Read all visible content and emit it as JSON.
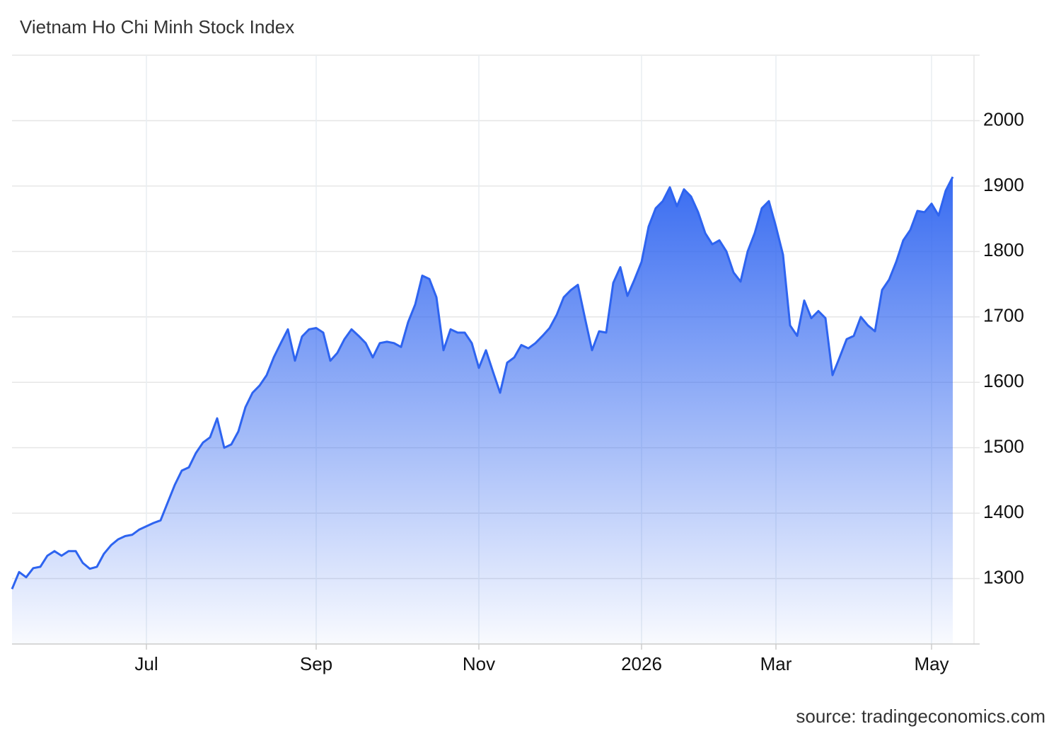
{
  "chart_data": {
    "type": "area",
    "title": "Vietnam Ho Chi Minh Stock Index",
    "source": "source: tradingeconomics.com",
    "color": "#2e64f0",
    "grid": true,
    "ylim": [
      1200,
      2100
    ],
    "yticks": [
      1300,
      1400,
      1500,
      1600,
      1700,
      1800,
      1900,
      2000
    ],
    "categories": [
      null,
      null,
      null,
      null,
      null,
      null,
      null,
      null,
      null,
      null,
      null,
      null,
      null,
      null,
      null,
      null,
      null,
      null,
      null,
      "Jul",
      null,
      null,
      null,
      null,
      null,
      null,
      null,
      null,
      null,
      null,
      null,
      null,
      null,
      null,
      null,
      null,
      null,
      null,
      null,
      null,
      null,
      null,
      null,
      "Sep",
      null,
      null,
      null,
      null,
      null,
      null,
      null,
      null,
      null,
      null,
      null,
      null,
      null,
      null,
      null,
      null,
      null,
      null,
      null,
      null,
      null,
      null,
      "Nov",
      null,
      null,
      null,
      null,
      null,
      null,
      null,
      null,
      null,
      null,
      null,
      null,
      null,
      null,
      null,
      null,
      null,
      null,
      null,
      null,
      null,
      null,
      "2026",
      null,
      null,
      null,
      null,
      null,
      null,
      null,
      null,
      null,
      null,
      null,
      null,
      null,
      null,
      null,
      null,
      null,
      null,
      "Mar",
      null,
      null,
      null,
      null,
      null,
      null,
      null,
      null,
      null,
      null,
      null,
      null,
      null,
      null,
      null,
      null,
      null,
      null,
      null,
      null,
      null,
      "May",
      null,
      null,
      null
    ],
    "values": [
      1284,
      1310,
      1302,
      1316,
      1318,
      1335,
      1342,
      1335,
      1342,
      1342,
      1324,
      1315,
      1318,
      1338,
      1351,
      1360,
      1365,
      1367,
      1375,
      1380,
      1385,
      1389,
      1416,
      1443,
      1465,
      1470,
      1492,
      1508,
      1516,
      1545,
      1500,
      1505,
      1525,
      1562,
      1584,
      1595,
      1611,
      1638,
      1660,
      1681,
      1633,
      1670,
      1681,
      1683,
      1676,
      1633,
      1645,
      1666,
      1681,
      1671,
      1660,
      1638,
      1660,
      1662,
      1660,
      1654,
      1692,
      1719,
      1763,
      1758,
      1730,
      1649,
      1681,
      1676,
      1676,
      1660,
      1622,
      1649,
      1616,
      1584,
      1630,
      1638,
      1657,
      1652,
      1660,
      1671,
      1683,
      1703,
      1730,
      1741,
      1749,
      1698,
      1649,
      1678,
      1676,
      1752,
      1776,
      1732,
      1757,
      1784,
      1838,
      1866,
      1877,
      1898,
      1869,
      1895,
      1884,
      1860,
      1828,
      1811,
      1817,
      1800,
      1768,
      1754,
      1800,
      1828,
      1866,
      1877,
      1838,
      1795,
      1687,
      1671,
      1725,
      1698,
      1709,
      1698,
      1611,
      1638,
      1666,
      1671,
      1700,
      1687,
      1678,
      1741,
      1757,
      1784,
      1817,
      1833,
      1862,
      1860,
      1873,
      1855,
      1893,
      1914
    ]
  }
}
